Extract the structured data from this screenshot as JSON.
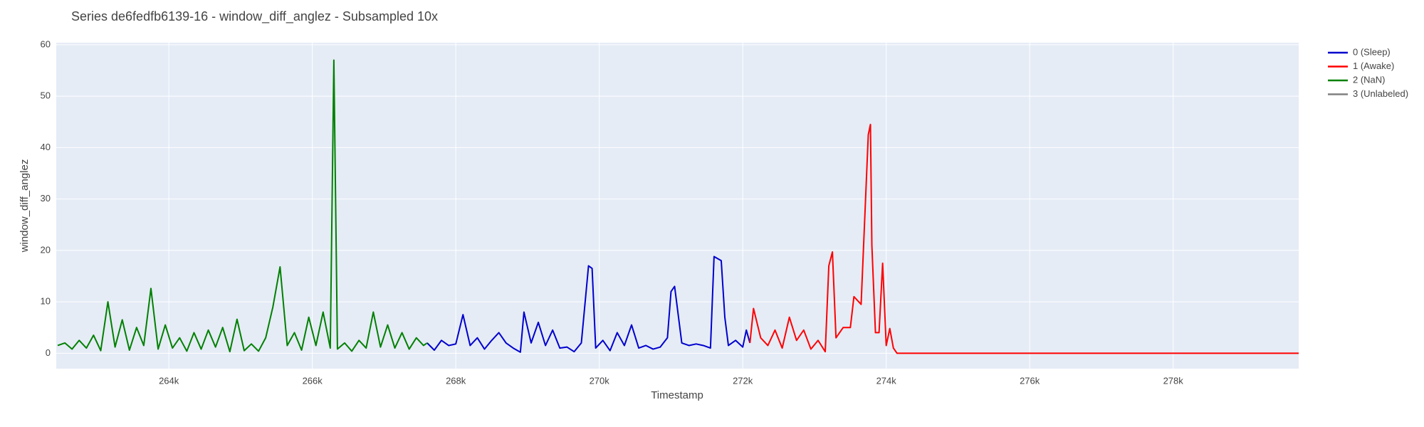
{
  "chart_data": {
    "type": "line",
    "title": "Series de6fedfb6139-16 - window_diff_anglez - Subsampled 10x",
    "x_label": "Timestamp",
    "y_label": "window_diff_anglez",
    "xlim": [
      262430,
      279750
    ],
    "ylim": [
      -3,
      60.4
    ],
    "xticks": [
      {
        "value": 264000,
        "label": "264k"
      },
      {
        "value": 266000,
        "label": "266k"
      },
      {
        "value": 268000,
        "label": "268k"
      },
      {
        "value": 270000,
        "label": "270k"
      },
      {
        "value": 272000,
        "label": "272k"
      },
      {
        "value": 274000,
        "label": "274k"
      },
      {
        "value": 276000,
        "label": "276k"
      },
      {
        "value": 278000,
        "label": "278k"
      }
    ],
    "yticks": [
      0,
      10,
      20,
      30,
      40,
      50,
      60
    ],
    "grid": true,
    "legend": "outside-top-right",
    "series": [
      {
        "name": "0 (Sleep)",
        "color": "#0000cd",
        "x": [
          267600,
          267700,
          267800,
          267900,
          268000,
          268100,
          268200,
          268300,
          268400,
          268500,
          268600,
          268700,
          268800,
          268900,
          268950,
          269050,
          269150,
          269250,
          269350,
          269450,
          269550,
          269650,
          269750,
          269850,
          269900,
          269950,
          270050,
          270150,
          270250,
          270350,
          270450,
          270550,
          270650,
          270750,
          270850,
          270950,
          271000,
          271050,
          271150,
          271250,
          271350,
          271450,
          271550,
          271600,
          271700,
          271750,
          271800,
          271900,
          272000,
          272050,
          272100
        ],
        "values": [
          2,
          0.6,
          2.5,
          1.5,
          1.8,
          7.5,
          1.5,
          3,
          0.8,
          2.5,
          4,
          2,
          1,
          0.2,
          8,
          2,
          6,
          1.5,
          4.5,
          1,
          1.2,
          0.3,
          2,
          17,
          16.5,
          1,
          2.5,
          0.5,
          4,
          1.5,
          5.5,
          1,
          1.5,
          0.8,
          1.2,
          3,
          12,
          13,
          2,
          1.5,
          1.8,
          1.5,
          1,
          18.8,
          18,
          7,
          1.5,
          2.5,
          1.2,
          4.5,
          2
        ]
      },
      {
        "name": "1 (Awake)",
        "color": "#ff0000",
        "x": [
          272100,
          272150,
          272250,
          272350,
          272450,
          272550,
          272650,
          272750,
          272850,
          272950,
          273050,
          273150,
          273200,
          273250,
          273300,
          273400,
          273500,
          273550,
          273650,
          273750,
          273780,
          273800,
          273850,
          273900,
          273950,
          274000,
          274050,
          274100,
          274150,
          279750
        ],
        "values": [
          2,
          8.7,
          3,
          1.5,
          4.5,
          1,
          7,
          2.5,
          4.5,
          0.8,
          2.5,
          0.3,
          17,
          19.7,
          3,
          5,
          5,
          11,
          9.5,
          42.5,
          44.5,
          21,
          4,
          4,
          17.5,
          1.5,
          4.8,
          1,
          0,
          0
        ]
      },
      {
        "name": "2 (NaN)",
        "color": "#008000",
        "x": [
          262450,
          262550,
          262650,
          262750,
          262850,
          262950,
          263050,
          263150,
          263250,
          263350,
          263450,
          263550,
          263650,
          263750,
          263850,
          263950,
          264050,
          264150,
          264250,
          264350,
          264450,
          264550,
          264650,
          264750,
          264850,
          264950,
          265050,
          265150,
          265250,
          265350,
          265450,
          265550,
          265650,
          265750,
          265850,
          265950,
          266050,
          266150,
          266250,
          266300,
          266350,
          266450,
          266550,
          266650,
          266750,
          266850,
          266950,
          267050,
          267150,
          267250,
          267350,
          267450,
          267550,
          267600
        ],
        "values": [
          1.5,
          2,
          0.8,
          2.5,
          1,
          3.5,
          0.5,
          10,
          1.2,
          6.5,
          0.6,
          5,
          1.5,
          12.6,
          0.8,
          5.5,
          1,
          3,
          0.4,
          4,
          0.8,
          4.5,
          1.2,
          5,
          0.3,
          6.6,
          0.5,
          1.8,
          0.4,
          3,
          9,
          16.8,
          1.5,
          4,
          0.6,
          7,
          1.5,
          8,
          1,
          57,
          0.8,
          2,
          0.4,
          2.5,
          1,
          8,
          1.2,
          5.5,
          1,
          4,
          0.8,
          3,
          1.5,
          2
        ]
      },
      {
        "name": "3 (Unlabeled)",
        "color": "#808080",
        "x": [],
        "values": []
      }
    ]
  }
}
